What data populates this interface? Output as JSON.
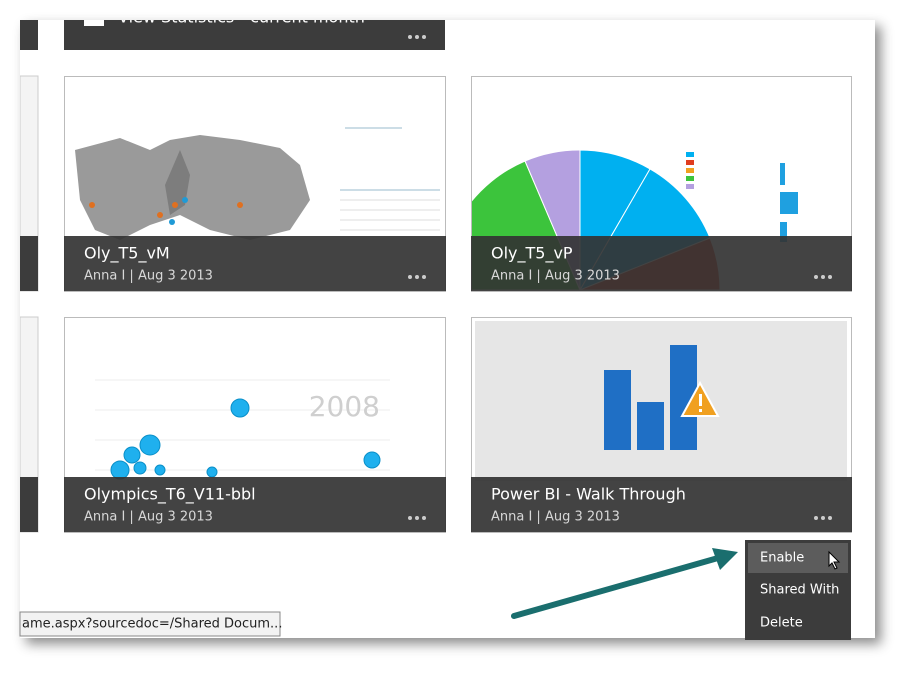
{
  "top_tile": {
    "title": "View Statistics - current month"
  },
  "tiles": [
    {
      "title": "Oly_T5_vM",
      "subtitle": "Anna I | Aug 3 2013"
    },
    {
      "title": "Oly_T5_vP",
      "subtitle": "Anna I | Aug 3 2013"
    },
    {
      "title": "Olympics_T6_V11-bbl",
      "subtitle": "Anna I | Aug 3 2013",
      "thumbnail_text": "2008"
    },
    {
      "title": "Power BI - Walk Through",
      "subtitle": "Anna I | Aug 3 2013"
    }
  ],
  "context_menu": [
    "Enable",
    "Shared With",
    "Delete"
  ],
  "status_bar": "ame.aspx?sourcedoc=/Shared Docum..."
}
